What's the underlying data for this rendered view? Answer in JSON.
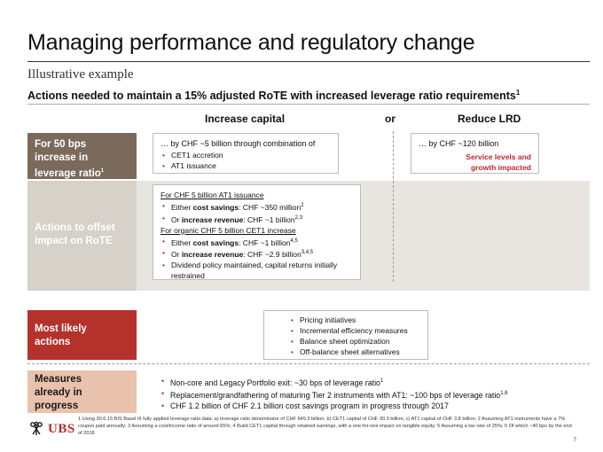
{
  "title": "Managing performance and regulatory change",
  "subtitle": "Illustrative example",
  "headline": "Actions needed to maintain a 15% adjusted RoTE with increased leverage ratio requirements",
  "headline_sup": "1",
  "columns": {
    "increase": "Increase capital",
    "or": "or",
    "reduce": "Reduce LRD"
  },
  "rows": {
    "r1": {
      "label_line1": "For 50 bps",
      "label_line2": "increase in",
      "label_line3": "leverage ratio",
      "label_sup": "1"
    },
    "r2": {
      "label_line1": "Actions to offset",
      "label_line2": "impact on RoTE"
    },
    "r3": {
      "label_line1": "Most likely",
      "label_line2": "actions"
    },
    "r4": {
      "label_line1": "Measures",
      "label_line2": "already in",
      "label_line3": "progress"
    }
  },
  "box1": {
    "lead": "… by CHF ~5 billion through combination of",
    "items": [
      "CET1 accretion",
      "AT1 issuance"
    ]
  },
  "box2": {
    "lead": "… by CHF ~120 billion",
    "red1": "Service levels and",
    "red2": "growth impacted"
  },
  "box3": {
    "heading1": "For CHF 5 billion AT1 issuance",
    "a1_pre": "Either ",
    "a1_bold": "cost savings",
    "a1_post": ": CHF ~350 million",
    "a1_sup": "2",
    "a2_pre": "Or ",
    "a2_bold": "increase revenue",
    "a2_post": ": CHF ~1 billion",
    "a2_sup": "2,3",
    "heading2": "For organic CHF 5 billion CET1 increase",
    "b1_pre": "Either ",
    "b1_bold": "cost savings",
    "b1_post": ": CHF ~1 billion",
    "b1_sup": "4,5",
    "b2_pre": "Or ",
    "b2_bold": "increase revenue",
    "b2_post": ": CHF ~2.9 billion",
    "b2_sup": "3,4,5",
    "b3": "Dividend policy maintained, capital returns initially restrained"
  },
  "box4": {
    "items": [
      "Pricing initiatives",
      "Incremental efficiency measures",
      "Balance sheet optimization",
      "Off-balance sheet alternatives"
    ]
  },
  "box5": {
    "i1": "Non-core and Legacy Portfolio exit: ~30 bps of leverage ratio",
    "i1_sup": "1",
    "i2": "Replacement/grandfathering of maturing Tier 2 instruments with AT1: ~100 bps of leverage ratio",
    "i2_sup": "1,6",
    "i3": "CHF 1.2 billion of CHF 2.1 billion cost savings program in progress through 2017"
  },
  "footnote": "1 Using 30.6.15 BIS Basel III fully applied leverage ratio data: a) leverage ratio denominator of CHF 949.3 billion, b) CET1 capital of CHF 30.3 billion, c) AT1 capital of CHF 3.8 billion; 2 Assuming AT1 instruments have a 7% coupon paid annually; 3 Assuming a cost/income ratio of around 65%; 4 Build CET1 capital through retained earnings, with a one-for-one impact on tangible equity; 5 Assuming a tax rate of 25%; 6 Of which ~40 bps by the end of 2018",
  "logo": "UBS",
  "page_number": "7",
  "colors": {
    "accent": "#c0272d",
    "brown": "#7a6a5c",
    "red": "#b5312c",
    "pink": "#e9c2ad",
    "gray": "#d6d1c9"
  }
}
